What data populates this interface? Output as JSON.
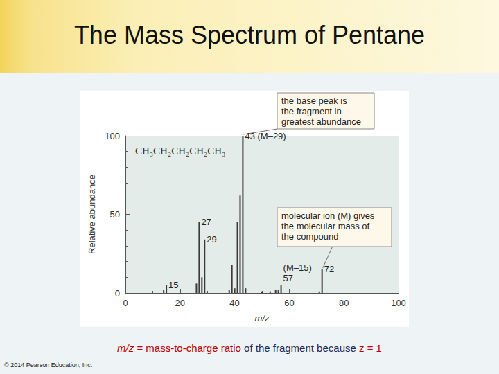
{
  "title": "The Mass Spectrum of Pentane",
  "footer": [
    {
      "text": "m/z",
      "color": "#c00000"
    },
    {
      "text": " = mass-to-charge ratio ",
      "color": "#c00000"
    },
    {
      "text": "of the fragment because ",
      "color": "#1f2a5a"
    },
    {
      "text": "z = 1",
      "color": "#c00000"
    }
  ],
  "copyright": "© 2014 Pearson Education, Inc.",
  "chart_data": {
    "type": "bar",
    "subtitle": "CH₃CH₂CH₂CH₂CH₃",
    "x_label": "m/z",
    "y_label": "Relative abundance",
    "x": [
      14,
      15,
      26,
      27,
      28,
      29,
      38,
      39,
      40,
      41,
      42,
      43,
      44,
      50,
      53,
      55,
      56,
      57,
      71,
      72
    ],
    "values": [
      2,
      5,
      6,
      45,
      10,
      34,
      2,
      18,
      3,
      45,
      62,
      100,
      3,
      1,
      1,
      2,
      2,
      5,
      1,
      15
    ],
    "color": "#3a3a3a",
    "xlim": [
      0,
      100
    ],
    "xticks": [
      0,
      20,
      40,
      60,
      80,
      100
    ],
    "ylim": [
      0,
      100
    ],
    "yticks": [
      0,
      50,
      100
    ],
    "grid": false,
    "peak_labels": [
      {
        "x": 15,
        "text": [
          "15"
        ]
      },
      {
        "x": 27,
        "text": [
          "27"
        ]
      },
      {
        "x": 29,
        "text": [
          "29"
        ]
      },
      {
        "x": 43,
        "text": [
          "43 (M–29)"
        ]
      },
      {
        "x": 57,
        "text": [
          "(M–15)",
          "57"
        ]
      },
      {
        "x": 72,
        "text": [
          "72"
        ]
      }
    ],
    "callouts": [
      {
        "x": 43,
        "text": [
          "the base peak is",
          "the fragment in",
          "greatest abundance"
        ]
      },
      {
        "x": 72,
        "text": [
          "molecular ion (M) gives",
          "the molecular mass of",
          "the compound"
        ]
      }
    ]
  }
}
